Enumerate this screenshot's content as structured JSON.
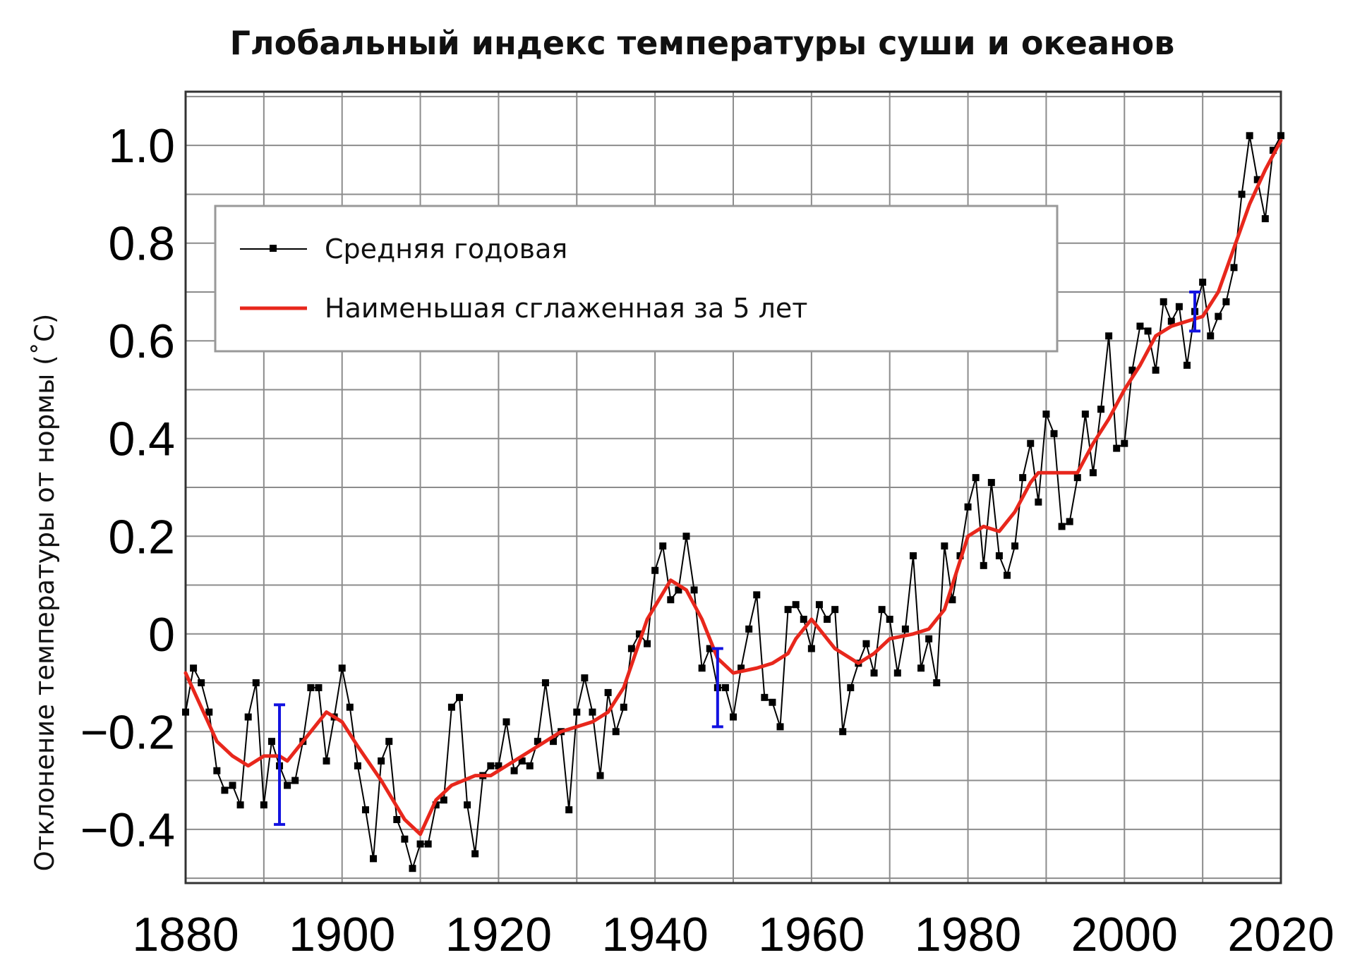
{
  "chart_data": {
    "type": "line",
    "title": "Глобальный индекс температуры суши и океанов",
    "xlabel": "",
    "ylabel": "Отклонение температуры от нормы (˚C)",
    "xlim": [
      1880,
      2020
    ],
    "ylim": [
      -0.51,
      1.11
    ],
    "x_ticks": [
      1880,
      1900,
      1920,
      1940,
      1960,
      1980,
      2000,
      2020
    ],
    "y_ticks": [
      {
        "value": -0.4,
        "label": "−0.4"
      },
      {
        "value": -0.2,
        "label": "−0.2"
      },
      {
        "value": 0,
        "label": "0"
      },
      {
        "value": 0.2,
        "label": "0.2"
      },
      {
        "value": 0.4,
        "label": "0.4"
      },
      {
        "value": 0.6,
        "label": "0.6"
      },
      {
        "value": 0.8,
        "label": "0.8"
      },
      {
        "value": 1.0,
        "label": "1.0"
      }
    ],
    "grid": true,
    "legend_position": "top-left",
    "series": [
      {
        "name": "Средняя годовая",
        "color": "#000000",
        "marker": "square",
        "x_start": 1880,
        "values": [
          -0.16,
          -0.07,
          -0.1,
          -0.16,
          -0.28,
          -0.32,
          -0.31,
          -0.35,
          -0.17,
          -0.1,
          -0.35,
          -0.22,
          -0.27,
          -0.31,
          -0.3,
          -0.22,
          -0.11,
          -0.11,
          -0.26,
          -0.17,
          -0.07,
          -0.15,
          -0.27,
          -0.36,
          -0.46,
          -0.26,
          -0.22,
          -0.38,
          -0.42,
          -0.48,
          -0.43,
          -0.43,
          -0.35,
          -0.34,
          -0.15,
          -0.13,
          -0.35,
          -0.45,
          -0.29,
          -0.27,
          -0.27,
          -0.18,
          -0.28,
          -0.26,
          -0.27,
          -0.22,
          -0.1,
          -0.22,
          -0.2,
          -0.36,
          -0.16,
          -0.09,
          -0.16,
          -0.29,
          -0.12,
          -0.2,
          -0.15,
          -0.03,
          0.0,
          -0.02,
          0.13,
          0.18,
          0.07,
          0.09,
          0.2,
          0.09,
          -0.07,
          -0.03,
          -0.11,
          -0.11,
          -0.17,
          -0.07,
          0.01,
          0.08,
          -0.13,
          -0.14,
          -0.19,
          0.05,
          0.06,
          0.03,
          -0.03,
          0.06,
          0.03,
          0.05,
          -0.2,
          -0.11,
          -0.06,
          -0.02,
          -0.08,
          0.05,
          0.03,
          -0.08,
          0.01,
          0.16,
          -0.07,
          -0.01,
          -0.1,
          0.18,
          0.07,
          0.16,
          0.26,
          0.32,
          0.14,
          0.31,
          0.16,
          0.12,
          0.18,
          0.32,
          0.39,
          0.27,
          0.45,
          0.41,
          0.22,
          0.23,
          0.32,
          0.45,
          0.33,
          0.46,
          0.61,
          0.38,
          0.39,
          0.54,
          0.63,
          0.62,
          0.54,
          0.68,
          0.64,
          0.67,
          0.55,
          0.66,
          0.72,
          0.61,
          0.65,
          0.68,
          0.75,
          0.9,
          1.02,
          0.93,
          0.85,
          0.99,
          1.02
        ]
      },
      {
        "name": "Наименьшая сглаженная за 5 лет",
        "color": "#e8271c",
        "x": [
          1880,
          1882,
          1884,
          1886,
          1888,
          1890,
          1892,
          1893,
          1895,
          1898,
          1900,
          1902,
          1905,
          1908,
          1910,
          1912,
          1914,
          1917,
          1919,
          1922,
          1925,
          1928,
          1930,
          1932,
          1934,
          1936,
          1939,
          1942,
          1944,
          1946,
          1948,
          1950,
          1953,
          1955,
          1957,
          1958,
          1960,
          1963,
          1966,
          1968,
          1970,
          1973,
          1975,
          1977,
          1980,
          1982,
          1984,
          1986,
          1988,
          1989,
          1992,
          1994,
          1996,
          1998,
          2000,
          2002,
          2004,
          2006,
          2008,
          2010,
          2012,
          2014,
          2016,
          2018,
          2020
        ],
        "y": [
          -0.08,
          -0.15,
          -0.22,
          -0.25,
          -0.27,
          -0.25,
          -0.25,
          -0.26,
          -0.22,
          -0.16,
          -0.18,
          -0.23,
          -0.3,
          -0.38,
          -0.41,
          -0.34,
          -0.31,
          -0.29,
          -0.29,
          -0.26,
          -0.23,
          -0.2,
          -0.19,
          -0.18,
          -0.16,
          -0.11,
          0.03,
          0.11,
          0.09,
          0.03,
          -0.05,
          -0.08,
          -0.07,
          -0.06,
          -0.04,
          -0.01,
          0.03,
          -0.03,
          -0.06,
          -0.04,
          -0.01,
          0.0,
          0.01,
          0.05,
          0.2,
          0.22,
          0.21,
          0.25,
          0.31,
          0.33,
          0.33,
          0.33,
          0.39,
          0.44,
          0.5,
          0.55,
          0.61,
          0.63,
          0.64,
          0.65,
          0.7,
          0.79,
          0.88,
          0.95,
          1.01
        ]
      }
    ],
    "error_bars": [
      {
        "x": 1892,
        "y": -0.27,
        "low": -0.39,
        "high": -0.145
      },
      {
        "x": 1948,
        "y": -0.11,
        "low": -0.19,
        "high": -0.03
      },
      {
        "x": 2009,
        "y": 0.66,
        "low": 0.62,
        "high": 0.7
      }
    ],
    "error_bar_color": "#1212e0"
  }
}
